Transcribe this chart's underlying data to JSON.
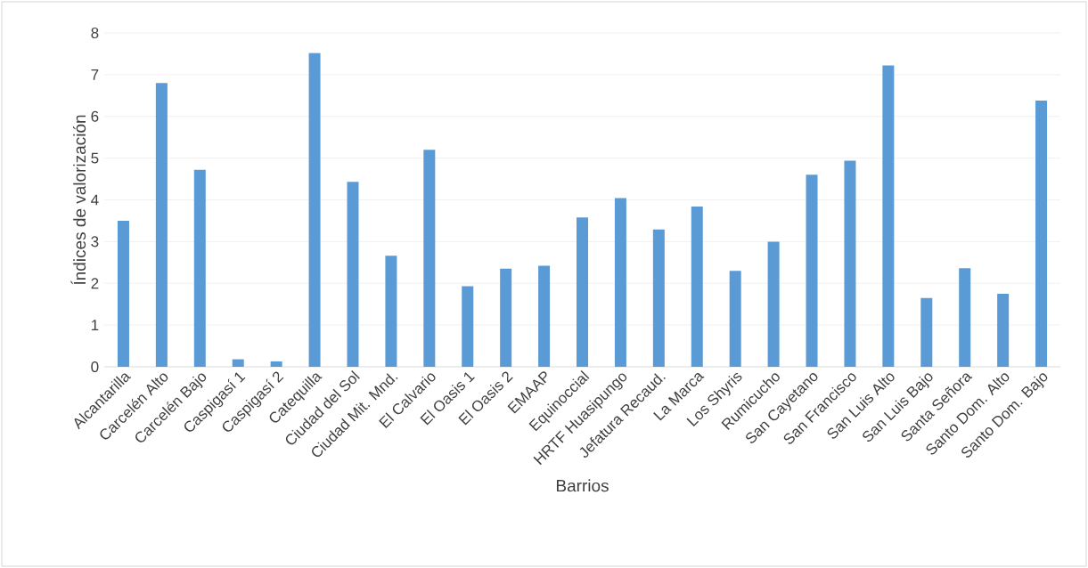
{
  "chart_data": {
    "type": "bar",
    "xlabel": "Barrios",
    "ylabel": "Índices de valorización",
    "categories": [
      "Alcantarilla",
      "Carcelén Alto",
      "Carcelén Bajo",
      "Caspigasí 1",
      "Caspigasí 2",
      "Catequilla",
      "Ciudad del Sol",
      "Ciudad Mit. Mnd.",
      "El Calvario",
      "El Oasis 1",
      "El Oasis 2",
      "EMAAP",
      "Equinoccial",
      "HRTF Huasipungo",
      "Jefatura Recaud.",
      "La Marca",
      "Los Shyris",
      "Rumicucho",
      "San Cayetano",
      "San Francisco",
      "San Luis Alto",
      "San Luis Bajo",
      "Santa Señora",
      "Santo Dom. Alto",
      "Santo Dom. Bajo"
    ],
    "values": [
      3.5,
      6.8,
      4.72,
      0.18,
      0.13,
      7.52,
      4.43,
      2.66,
      5.2,
      1.93,
      2.35,
      2.42,
      3.58,
      4.04,
      3.29,
      3.84,
      2.3,
      3.0,
      4.6,
      4.94,
      7.22,
      1.65,
      2.36,
      1.75,
      6.38
    ],
    "color": "#5b9bd5",
    "ylim": [
      0,
      8
    ],
    "yticks": [
      0,
      1,
      2,
      3,
      4,
      5,
      6,
      7,
      8
    ],
    "grid": "y"
  }
}
